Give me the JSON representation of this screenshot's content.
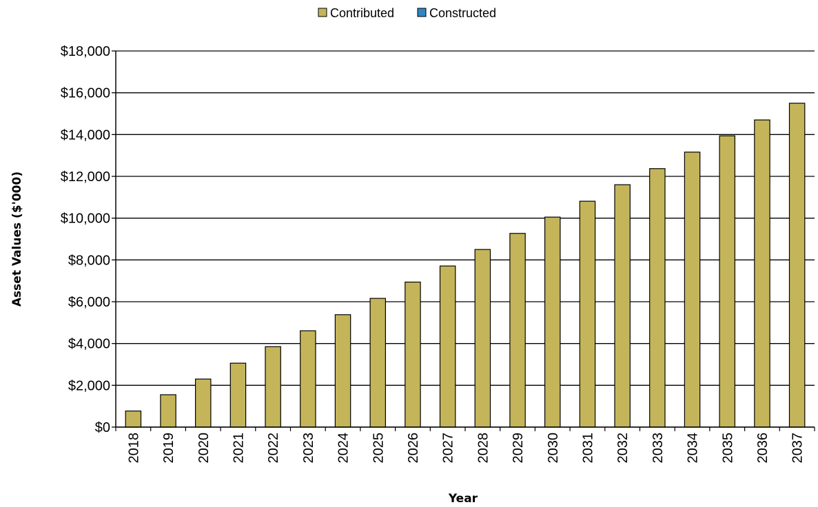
{
  "chart_data": {
    "type": "bar",
    "categories": [
      "2018",
      "2019",
      "2020",
      "2021",
      "2022",
      "2023",
      "2024",
      "2025",
      "2026",
      "2027",
      "2028",
      "2029",
      "2030",
      "2031",
      "2032",
      "2033",
      "2034",
      "2035",
      "2036",
      "2037"
    ],
    "series": [
      {
        "name": "Contributed",
        "color": "#c4b55a",
        "values": [
          770,
          1550,
          2300,
          3060,
          3850,
          4610,
          5380,
          6160,
          6940,
          7710,
          8500,
          9270,
          10050,
          10810,
          11600,
          12370,
          13160,
          13940,
          14700,
          15500
        ]
      },
      {
        "name": "Constructed",
        "color": "#2f86c4",
        "values": [
          0,
          0,
          0,
          0,
          0,
          0,
          0,
          0,
          0,
          0,
          0,
          0,
          0,
          0,
          0,
          0,
          0,
          0,
          0,
          0
        ]
      }
    ],
    "xlabel": "Year",
    "ylabel": "Asset Values ($'000)",
    "ylim": [
      0,
      18000
    ],
    "yticks": [
      0,
      2000,
      4000,
      6000,
      8000,
      10000,
      12000,
      14000,
      16000,
      18000
    ],
    "ytick_labels": [
      "$0",
      "$2,000",
      "$4,000",
      "$6,000",
      "$8,000",
      "$10,000",
      "$12,000",
      "$14,000",
      "$16,000",
      "$18,000"
    ],
    "grid": true,
    "legend_position": "top-center"
  }
}
